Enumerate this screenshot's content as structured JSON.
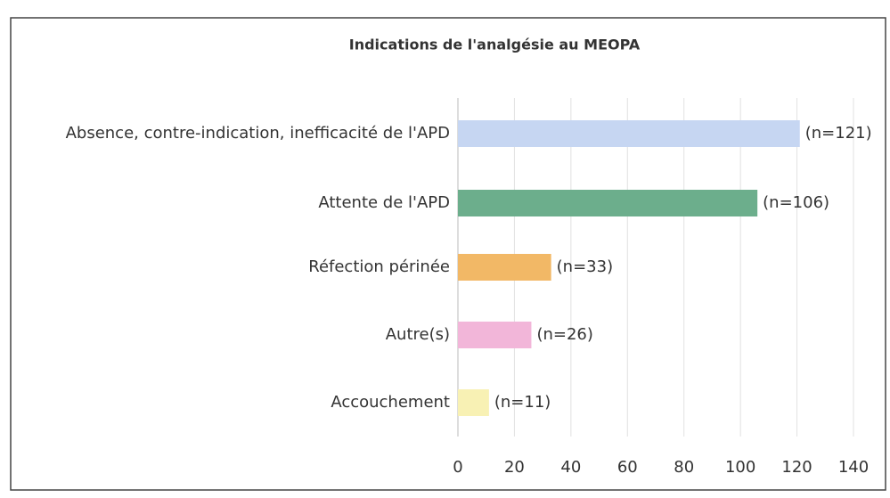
{
  "chart_data": {
    "type": "barh",
    "title": "Indications de l'analgésie au MEOPA",
    "categories": [
      "Absence, contre-indication, inefficacité de l'APD",
      "Attente de l'APD",
      "Réfection périnée",
      "Autre(s)",
      "Accouchement"
    ],
    "values": [
      121,
      106,
      33,
      26,
      11
    ],
    "value_labels": [
      "(n=121)",
      "(n=106)",
      "(n=33)",
      "(n=26)",
      "(n=11)"
    ],
    "colors": [
      "#c6d6f2",
      "#6cae8c",
      "#f2b866",
      "#f2b6d9",
      "#f8f1b4"
    ],
    "xlim": [
      0,
      140
    ],
    "xticks": [
      0,
      20,
      40,
      60,
      80,
      100,
      120,
      140
    ],
    "grid": true
  }
}
